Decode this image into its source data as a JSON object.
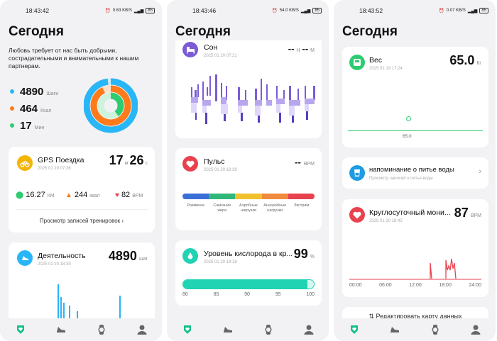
{
  "colors": {
    "steps": "#29b6f6",
    "kcal": "#ff7a1a",
    "minutes": "#2ecc71",
    "accent": "#16c08a",
    "gps": "#f5b400",
    "heart": "#e8424e",
    "sleep": "#7b5cd6",
    "oxygen": "#1fd3b3",
    "water": "#1f9be0"
  },
  "screen1": {
    "status": {
      "time": "18:43:42",
      "net": "0.63 KB/S",
      "battery": "85"
    },
    "title": "Сегодня",
    "quote": "Любовь требует от нас быть добрыми, сострадательными и внимательными к нашим партнерам.",
    "stats": [
      {
        "value": "4890",
        "unit": "Шаги"
      },
      {
        "value": "464",
        "unit": "Ккал"
      },
      {
        "value": "17",
        "unit": "Мин"
      }
    ],
    "rings": {
      "steps": 0.98,
      "kcal": 0.93,
      "minutes": 0.4
    },
    "gps": {
      "title": "GPS Поездка",
      "date": "2025 01 20 07:36",
      "minutes": "17",
      "min_unit": "м",
      "seconds": "26",
      "sec_unit": "с",
      "distance": "16.27",
      "distance_unit": "КМ",
      "kcal": "244",
      "kcal_unit": "ккал",
      "bpm": "82",
      "bpm_unit": "BPM",
      "link": "Просмотр записей тренировок"
    },
    "activity": {
      "title": "Деятельность",
      "date": "2025 01 20 18:39",
      "value": "4890",
      "unit": "шаг"
    }
  },
  "screen2": {
    "status": {
      "time": "18:43:46",
      "net": "54.0 KB/S",
      "battery": "85"
    },
    "title": "Сегодня",
    "sleep": {
      "title": "Сон",
      "date": "2025 01 20 07:21",
      "h_value": "--",
      "h_unit": "Н",
      "m_value": "--",
      "m_unit": "М"
    },
    "pulse": {
      "title": "Пульс",
      "date": "2025 01 20 18:39",
      "value": "--",
      "unit": "BPM",
      "zones": [
        {
          "label": "Разминка",
          "color": "#3a6fd8"
        },
        {
          "label": "Сжигание жира",
          "color": "#2fb87a"
        },
        {
          "label": "Аэробные нагрузки",
          "color": "#f2c12e"
        },
        {
          "label": "Анаэробные нагрузки",
          "color": "#f08a3c"
        },
        {
          "label": "Экстрим",
          "color": "#e8424e"
        }
      ]
    },
    "oxygen": {
      "title": "Уровень кислорода в кр...",
      "date": "2025 01 20 18:18",
      "value": "99",
      "unit": "%",
      "level": 99,
      "ticks": [
        "80",
        "85",
        "90",
        "95",
        "100"
      ]
    }
  },
  "screen3": {
    "status": {
      "time": "18:43:52",
      "net": "0.07 KB/S",
      "battery": "85"
    },
    "title": "Сегодня",
    "weight": {
      "title": "Вес",
      "date": "2025 01 19 17:24",
      "value": "65.0",
      "unit": "Кг",
      "point_label": "65.0"
    },
    "water": {
      "title": "напоминание о питье воды",
      "sub": "Просмотр записей о питье воды"
    },
    "allday": {
      "title": "Круглосуточный мони...",
      "date": "2025 01 20 18:42",
      "value": "87",
      "unit": "BPM",
      "ticks": [
        "00:00",
        "06:00",
        "12:00",
        "18:00",
        "24:00"
      ]
    },
    "edit": "Редактировать карту данных"
  },
  "tabs": [
    "health-tab",
    "workout-tab",
    "watch-tab",
    "profile-tab"
  ]
}
